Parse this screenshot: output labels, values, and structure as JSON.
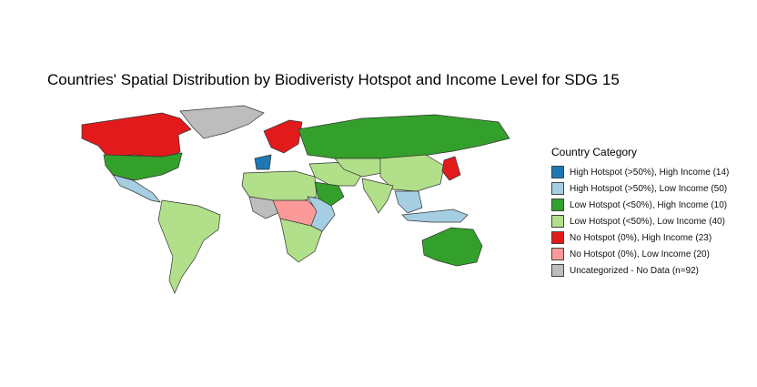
{
  "title": "Countries' Spatial Distribution by Biodiveristy Hotspot and Income Level for SDG 15",
  "legend": {
    "title": "Country Category",
    "items": [
      {
        "label": "High Hotspot (>50%), High Income (14)",
        "color": "#1f78b4"
      },
      {
        "label": "High Hotspot (>50%), Low Income (50)",
        "color": "#a6cee3"
      },
      {
        "label": "Low Hotspot (<50%), High Income (10)",
        "color": "#33a02c"
      },
      {
        "label": "Low Hotspot (<50%), Low Income (40)",
        "color": "#b2df8a"
      },
      {
        "label": "No Hotspot (0%), High Income (23)",
        "color": "#e31a1c"
      },
      {
        "label": "No Hotspot (0%), Low Income (20)",
        "color": "#fb9a99"
      },
      {
        "label": "Uncategorized - No Data (n=92)",
        "color": "#bdbdbd"
      }
    ]
  },
  "regions": [
    {
      "name": "canada",
      "category": 4
    },
    {
      "name": "usa",
      "category": 2
    },
    {
      "name": "mexico-central-america",
      "category": 1
    },
    {
      "name": "greenland",
      "category": 6
    },
    {
      "name": "south-america",
      "category": 3
    },
    {
      "name": "north-africa",
      "category": 3
    },
    {
      "name": "west-africa",
      "category": 6
    },
    {
      "name": "central-africa",
      "category": 5
    },
    {
      "name": "east-africa",
      "category": 1
    },
    {
      "name": "southern-africa",
      "category": 3
    },
    {
      "name": "europe-north",
      "category": 4
    },
    {
      "name": "europe-west",
      "category": 0
    },
    {
      "name": "russia",
      "category": 2
    },
    {
      "name": "middle-east",
      "category": 3
    },
    {
      "name": "arabian-peninsula",
      "category": 2
    },
    {
      "name": "central-asia",
      "category": 3
    },
    {
      "name": "china",
      "category": 3
    },
    {
      "name": "india",
      "category": 3
    },
    {
      "name": "southeast-asia",
      "category": 1
    },
    {
      "name": "japan-korea",
      "category": 4
    },
    {
      "name": "australia",
      "category": 2
    },
    {
      "name": "indonesia",
      "category": 1
    }
  ]
}
